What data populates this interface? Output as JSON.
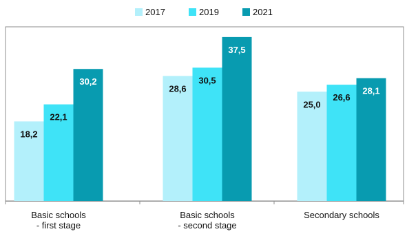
{
  "chart_data": {
    "type": "bar",
    "title": "",
    "xlabel": "",
    "ylabel": "",
    "ylim": [
      0,
      40
    ],
    "grid": false,
    "legend_position": "top-center",
    "categories": [
      [
        "Basic schools",
        "- first stage"
      ],
      [
        "Basic schools",
        "- second stage"
      ],
      [
        "Secondary schools"
      ]
    ],
    "series": [
      {
        "name": "2017",
        "values": [
          18.2,
          28.6,
          25.0
        ],
        "labels": [
          "18,2",
          "28,6",
          "25,0"
        ],
        "color": "#b3f0fb"
      },
      {
        "name": "2019",
        "values": [
          22.1,
          30.5,
          26.6
        ],
        "labels": [
          "22,1",
          "30,5",
          "26,6"
        ],
        "color": "#3fe3f7"
      },
      {
        "name": "2021",
        "values": [
          30.2,
          37.5,
          28.1
        ],
        "labels": [
          "30,2",
          "37,5",
          "28,1"
        ],
        "color": "#089bb0"
      }
    ],
    "label_colors": [
      "#111111",
      "#111111",
      "#ffffff"
    ],
    "border_color": "#8c8c8c"
  }
}
